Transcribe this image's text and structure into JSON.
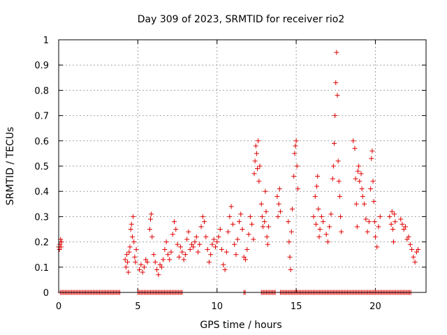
{
  "chart_data": {
    "type": "scatter",
    "title": "Day 309 of 2023, SRMTID for receiver rio2",
    "xlabel": "GPS time / hours",
    "ylabel": "SRMTID / TECUs",
    "xlim": [
      0,
      23.2
    ],
    "ylim": [
      0,
      1
    ],
    "xticks": [
      0,
      5,
      10,
      15,
      20
    ],
    "yticks": [
      0,
      0.1,
      0.2,
      0.3,
      0.4,
      0.5,
      0.6,
      0.7,
      0.8,
      0.9,
      1
    ],
    "xtick_labels": [
      "0",
      "5",
      "10",
      "15",
      "20"
    ],
    "ytick_labels": [
      "0",
      "0.1",
      "0.2",
      "0.3",
      "0.4",
      "0.5",
      "0.6",
      "0.7",
      "0.8",
      "0.9",
      "1"
    ],
    "grid": true,
    "marker": "+",
    "color": "#e00000",
    "series": [
      {
        "name": "SRMTID",
        "points": [
          [
            0.0,
            0.18
          ],
          [
            0.05,
            0.17
          ],
          [
            0.08,
            0.19
          ],
          [
            0.12,
            0.21
          ],
          [
            0.15,
            0.18
          ],
          [
            0.18,
            0.2
          ],
          [
            4.2,
            0.13
          ],
          [
            4.25,
            0.1
          ],
          [
            4.3,
            0.15
          ],
          [
            4.35,
            0.12
          ],
          [
            4.4,
            0.08
          ],
          [
            4.45,
            0.16
          ],
          [
            4.5,
            0.18
          ],
          [
            4.55,
            0.25
          ],
          [
            4.6,
            0.27
          ],
          [
            4.65,
            0.22
          ],
          [
            4.7,
            0.3
          ],
          [
            4.75,
            0.2
          ],
          [
            4.8,
            0.14
          ],
          [
            4.85,
            0.12
          ],
          [
            4.9,
            0.17
          ],
          [
            5.1,
            0.09
          ],
          [
            5.2,
            0.11
          ],
          [
            5.3,
            0.08
          ],
          [
            5.4,
            0.1
          ],
          [
            5.5,
            0.13
          ],
          [
            5.6,
            0.12
          ],
          [
            5.75,
            0.25
          ],
          [
            5.8,
            0.29
          ],
          [
            5.85,
            0.31
          ],
          [
            5.9,
            0.22
          ],
          [
            6.0,
            0.15
          ],
          [
            6.1,
            0.12
          ],
          [
            6.2,
            0.09
          ],
          [
            6.3,
            0.07
          ],
          [
            6.4,
            0.11
          ],
          [
            6.5,
            0.1
          ],
          [
            6.6,
            0.13
          ],
          [
            6.7,
            0.17
          ],
          [
            6.8,
            0.2
          ],
          [
            6.9,
            0.15
          ],
          [
            7.0,
            0.13
          ],
          [
            7.1,
            0.16
          ],
          [
            7.2,
            0.23
          ],
          [
            7.3,
            0.28
          ],
          [
            7.4,
            0.25
          ],
          [
            7.5,
            0.19
          ],
          [
            7.6,
            0.14
          ],
          [
            7.7,
            0.18
          ],
          [
            7.8,
            0.16
          ],
          [
            7.9,
            0.13
          ],
          [
            8.0,
            0.15
          ],
          [
            8.1,
            0.21
          ],
          [
            8.2,
            0.24
          ],
          [
            8.3,
            0.17
          ],
          [
            8.4,
            0.19
          ],
          [
            8.5,
            0.18
          ],
          [
            8.6,
            0.2
          ],
          [
            8.7,
            0.22
          ],
          [
            8.8,
            0.16
          ],
          [
            8.9,
            0.19
          ],
          [
            9.0,
            0.26
          ],
          [
            9.1,
            0.3
          ],
          [
            9.2,
            0.28
          ],
          [
            9.3,
            0.22
          ],
          [
            9.4,
            0.17
          ],
          [
            9.5,
            0.12
          ],
          [
            9.6,
            0.15
          ],
          [
            9.7,
            0.19
          ],
          [
            9.8,
            0.21
          ],
          [
            9.9,
            0.18
          ],
          [
            10.0,
            0.2
          ],
          [
            10.1,
            0.22
          ],
          [
            10.2,
            0.25
          ],
          [
            10.3,
            0.17
          ],
          [
            10.4,
            0.11
          ],
          [
            10.5,
            0.09
          ],
          [
            10.6,
            0.16
          ],
          [
            10.7,
            0.24
          ],
          [
            10.8,
            0.3
          ],
          [
            10.9,
            0.34
          ],
          [
            11.0,
            0.27
          ],
          [
            11.1,
            0.19
          ],
          [
            11.2,
            0.15
          ],
          [
            11.3,
            0.21
          ],
          [
            11.4,
            0.28
          ],
          [
            11.5,
            0.31
          ],
          [
            11.6,
            0.25
          ],
          [
            11.7,
            0.14
          ],
          [
            11.8,
            0.13
          ],
          [
            11.9,
            0.17
          ],
          [
            12.0,
            0.23
          ],
          [
            12.1,
            0.3
          ],
          [
            12.2,
            0.27
          ],
          [
            12.3,
            0.21
          ],
          [
            12.35,
            0.47
          ],
          [
            12.4,
            0.52
          ],
          [
            12.45,
            0.58
          ],
          [
            12.5,
            0.55
          ],
          [
            12.55,
            0.49
          ],
          [
            12.6,
            0.6
          ],
          [
            12.65,
            0.44
          ],
          [
            12.7,
            0.5
          ],
          [
            12.8,
            0.35
          ],
          [
            12.85,
            0.3
          ],
          [
            12.9,
            0.26
          ],
          [
            13.0,
            0.28
          ],
          [
            13.05,
            0.4
          ],
          [
            13.1,
            0.32
          ],
          [
            13.15,
            0.22
          ],
          [
            13.2,
            0.19
          ],
          [
            13.25,
            0.26
          ],
          [
            13.8,
            0.38
          ],
          [
            13.85,
            0.3
          ],
          [
            13.9,
            0.35
          ],
          [
            13.95,
            0.41
          ],
          [
            14.0,
            0.32
          ],
          [
            14.5,
            0.28
          ],
          [
            14.55,
            0.2
          ],
          [
            14.6,
            0.14
          ],
          [
            14.65,
            0.09
          ],
          [
            14.7,
            0.24
          ],
          [
            14.75,
            0.33
          ],
          [
            14.85,
            0.46
          ],
          [
            14.9,
            0.55
          ],
          [
            14.95,
            0.58
          ],
          [
            15.0,
            0.6
          ],
          [
            15.05,
            0.5
          ],
          [
            15.1,
            0.41
          ],
          [
            16.1,
            0.3
          ],
          [
            16.2,
            0.38
          ],
          [
            16.25,
            0.27
          ],
          [
            16.3,
            0.42
          ],
          [
            16.35,
            0.46
          ],
          [
            16.4,
            0.33
          ],
          [
            16.45,
            0.22
          ],
          [
            16.5,
            0.25
          ],
          [
            16.6,
            0.3
          ],
          [
            16.7,
            0.28
          ],
          [
            16.9,
            0.23
          ],
          [
            17.0,
            0.2
          ],
          [
            17.1,
            0.26
          ],
          [
            17.2,
            0.31
          ],
          [
            17.3,
            0.45
          ],
          [
            17.35,
            0.5
          ],
          [
            17.4,
            0.59
          ],
          [
            17.45,
            0.7
          ],
          [
            17.5,
            0.83
          ],
          [
            17.55,
            0.95
          ],
          [
            17.6,
            0.78
          ],
          [
            17.65,
            0.52
          ],
          [
            17.7,
            0.44
          ],
          [
            17.75,
            0.38
          ],
          [
            17.8,
            0.3
          ],
          [
            17.85,
            0.24
          ],
          [
            18.6,
            0.6
          ],
          [
            18.7,
            0.57
          ],
          [
            18.75,
            0.45
          ],
          [
            18.8,
            0.35
          ],
          [
            18.85,
            0.26
          ],
          [
            18.9,
            0.48
          ],
          [
            18.95,
            0.5
          ],
          [
            19.0,
            0.44
          ],
          [
            19.1,
            0.47
          ],
          [
            19.15,
            0.41
          ],
          [
            19.2,
            0.38
          ],
          [
            19.3,
            0.35
          ],
          [
            19.4,
            0.29
          ],
          [
            19.5,
            0.24
          ],
          [
            19.6,
            0.28
          ],
          [
            19.7,
            0.41
          ],
          [
            19.75,
            0.53
          ],
          [
            19.8,
            0.56
          ],
          [
            19.85,
            0.44
          ],
          [
            19.9,
            0.36
          ],
          [
            19.95,
            0.28
          ],
          [
            20.0,
            0.22
          ],
          [
            20.1,
            0.18
          ],
          [
            20.2,
            0.26
          ],
          [
            20.3,
            0.3
          ],
          [
            20.9,
            0.3
          ],
          [
            21.0,
            0.27
          ],
          [
            21.05,
            0.32
          ],
          [
            21.1,
            0.25
          ],
          [
            21.15,
            0.2
          ],
          [
            21.2,
            0.31
          ],
          [
            21.25,
            0.28
          ],
          [
            21.6,
            0.29
          ],
          [
            21.7,
            0.27
          ],
          [
            21.8,
            0.25
          ],
          [
            21.9,
            0.26
          ],
          [
            22.0,
            0.21
          ],
          [
            22.1,
            0.22
          ],
          [
            22.2,
            0.19
          ],
          [
            22.3,
            0.17
          ],
          [
            22.4,
            0.14
          ],
          [
            22.5,
            0.12
          ],
          [
            22.6,
            0.16
          ],
          [
            22.7,
            0.17
          ]
        ],
        "zero_runs": [
          [
            0.1,
            3.9
          ],
          [
            5.0,
            7.8
          ],
          [
            11.7,
            11.8
          ],
          [
            12.8,
            13.7
          ],
          [
            14.0,
            22.3
          ]
        ]
      }
    ]
  }
}
